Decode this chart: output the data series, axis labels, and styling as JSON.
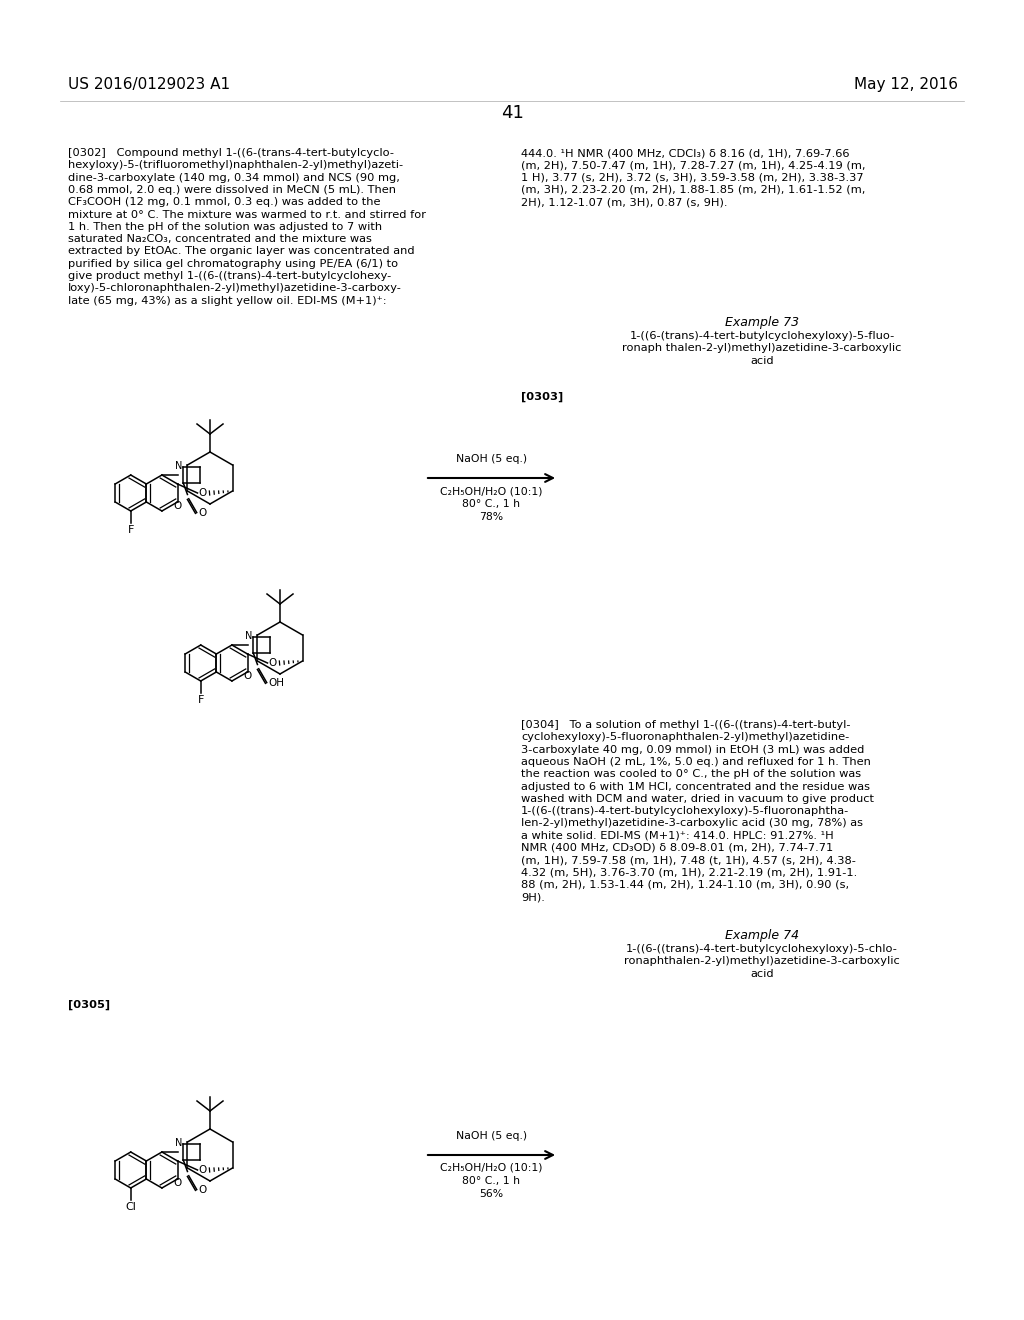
{
  "patent_number": "US 2016/0129023 A1",
  "patent_date": "May 12, 2016",
  "page_number": "41",
  "bg_color": "#ffffff",
  "left_col_lines_0302": [
    "[0302]   Compound methyl 1-((6-(trans-4-tert-butylcyclo-",
    "hexyloxy)-5-(trifluoromethyl)naphthalen-2-yl)methyl)azeti-",
    "dine-3-carboxylate (140 mg, 0.34 mmol) and NCS (90 mg,",
    "0.68 mmol, 2.0 eq.) were dissolved in MeCN (5 mL). Then",
    "CF₃COOH (12 mg, 0.1 mmol, 0.3 eq.) was added to the",
    "mixture at 0° C. The mixture was warmed to r.t. and stirred for",
    "1 h. Then the pH of the solution was adjusted to 7 with",
    "saturated Na₂CO₃, concentrated and the mixture was",
    "extracted by EtOAc. The organic layer was concentrated and",
    "purified by silica gel chromatography using PE/EA (6/1) to",
    "give product methyl 1-((6-((trans)-4-tert-butylcyclohexy-",
    "loxy)-5-chloronaphthalen-2-yl)methyl)azetidine-3-carboxy-",
    "late (65 mg, 43%) as a slight yellow oil. EDI-MS (M+1)⁺:"
  ],
  "right_col_lines_0302": [
    "444.0. ¹H NMR (400 MHz, CDCl₃) δ 8.16 (d, 1H), 7.69-7.66",
    "(m, 2H), 7.50-7.47 (m, 1H), 7.28-7.27 (m, 1H), 4.25-4.19 (m,",
    "1 H), 3.77 (s, 2H), 3.72 (s, 3H), 3.59-3.58 (m, 2H), 3.38-3.37",
    "(m, 3H), 2.23-2.20 (m, 2H), 1.88-1.85 (m, 2H), 1.61-1.52 (m,",
    "2H), 1.12-1.07 (m, 3H), 0.87 (s, 9H)."
  ],
  "example73_title": "Example 73",
  "example73_name": [
    "1-((6-(trans)-4-tert-butylcyclohexyloxy)-5-fluo-",
    "ronaph thalen-2-yl)methyl)azetidine-3-carboxylic",
    "acid"
  ],
  "label_0303": "[0303]",
  "arrow1_above": "NaOH (5 eq.)",
  "arrow1_below1": "C₂H₅OH/H₂O (10:1)",
  "arrow1_below2": "80° C., 1 h",
  "arrow1_below3": "78%",
  "right_col_lines_0304": [
    "[0304]   To a solution of methyl 1-((6-((trans)-4-tert-butyl-",
    "cyclohexyloxy)-5-fluoronaphthalen-2-yl)methyl)azetidine-",
    "3-carboxylate 40 mg, 0.09 mmol) in EtOH (3 mL) was added",
    "aqueous NaOH (2 mL, 1%, 5.0 eq.) and refluxed for 1 h. Then",
    "the reaction was cooled to 0° C., the pH of the solution was",
    "adjusted to 6 with 1M HCl, concentrated and the residue was",
    "washed with DCM and water, dried in vacuum to give product",
    "1-((6-((trans)-4-tert-butylcyclohexyloxy)-5-fluoronaphtha-",
    "len-2-yl)methyl)azetidine-3-carboxylic acid (30 mg, 78%) as",
    "a white solid. EDI-MS (M+1)⁺: 414.0. HPLC: 91.27%. ¹H",
    "NMR (400 MHz, CD₃OD) δ 8.09-8.01 (m, 2H), 7.74-7.71",
    "(m, 1H), 7.59-7.58 (m, 1H), 7.48 (t, 1H), 4.57 (s, 2H), 4.38-",
    "4.32 (m, 5H), 3.76-3.70 (m, 1H), 2.21-2.19 (m, 2H), 1.91-1.",
    "88 (m, 2H), 1.53-1.44 (m, 2H), 1.24-1.10 (m, 3H), 0.90 (s,",
    "9H)."
  ],
  "example74_title": "Example 74",
  "example74_name": [
    "1-((6-((trans)-4-tert-butylcyclohexyloxy)-5-chlo-",
    "ronaphthalen-2-yl)methyl)azetidine-3-carboxylic",
    "acid"
  ],
  "label_0305": "[0305]",
  "arrow2_above": "NaOH (5 eq.)",
  "arrow2_below1": "C₂H₅OH/H₂O (10:1)",
  "arrow2_below2": "80° C., 1 h",
  "arrow2_below3": "56%"
}
